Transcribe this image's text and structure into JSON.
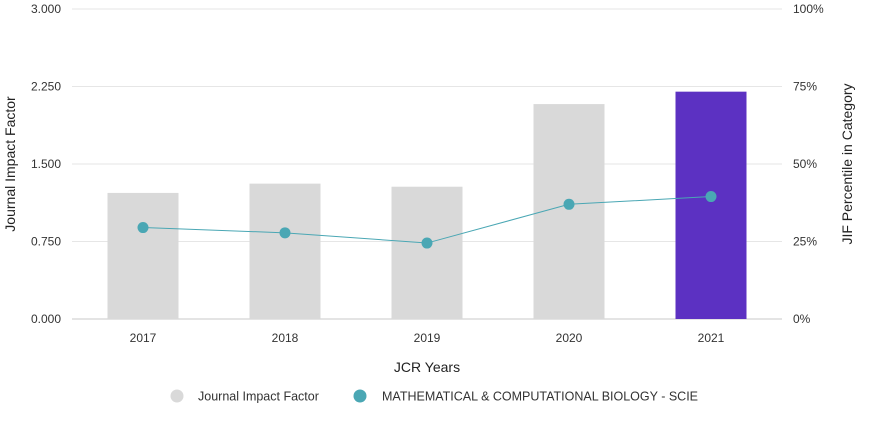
{
  "chart_data": {
    "type": "bar",
    "categories": [
      "2017",
      "2018",
      "2019",
      "2020",
      "2021"
    ],
    "xlabel": "JCR Years",
    "ylabel": "Journal Impact Factor",
    "ylabel_right": "JIF Percentile in Category",
    "ylim": [
      0,
      3
    ],
    "ylim_right": [
      0,
      100
    ],
    "yticks": [
      "0.000",
      "0.750",
      "1.500",
      "2.250",
      "3.000"
    ],
    "yticks_right": [
      "0%",
      "25%",
      "50%",
      "75%",
      "100%"
    ],
    "grid": true,
    "legend_position": "bottom",
    "series": [
      {
        "name": "Journal Impact Factor",
        "type": "bar",
        "axis": "left",
        "values": [
          1.22,
          1.31,
          1.28,
          2.08,
          2.2
        ],
        "color": "#d9d9d9",
        "highlight_color": "#5c31c2",
        "highlight_index": 4
      },
      {
        "name": "MATHEMATICAL & COMPUTATIONAL BIOLOGY - SCIE",
        "type": "line",
        "axis": "right",
        "values": [
          29.5,
          27.8,
          24.5,
          37.0,
          39.5
        ],
        "color": "#4aa7b4"
      }
    ]
  }
}
